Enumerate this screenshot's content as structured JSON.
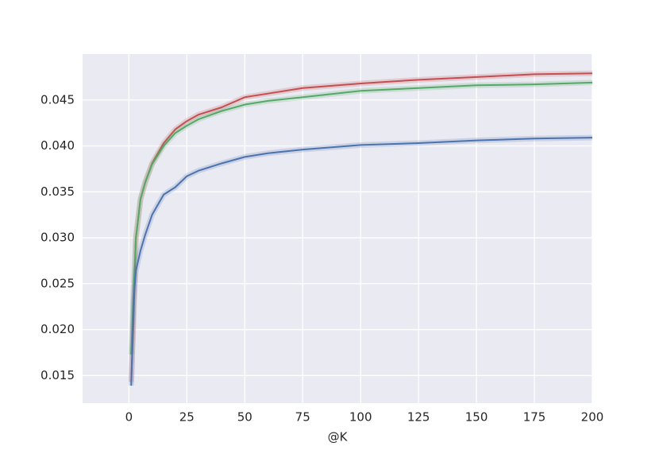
{
  "chart_data": {
    "type": "line",
    "x_label": "@K",
    "x": [
      1,
      2,
      3,
      5,
      7,
      10,
      15,
      20,
      25,
      30,
      40,
      50,
      60,
      75,
      100,
      125,
      150,
      175,
      200
    ],
    "series": [
      {
        "color": "#c44e52",
        "values": [
          0.0143,
          0.021,
          0.0299,
          0.0342,
          0.036,
          0.0381,
          0.0403,
          0.0418,
          0.0427,
          0.0434,
          0.0442,
          0.0453,
          0.0457,
          0.0463,
          0.0468,
          0.0472,
          0.0475,
          0.0478,
          0.0479
        ]
      },
      {
        "color": "#55a868",
        "values": [
          0.0173,
          0.024,
          0.03,
          0.0342,
          0.036,
          0.038,
          0.04,
          0.0414,
          0.0422,
          0.0429,
          0.0438,
          0.0445,
          0.0449,
          0.0453,
          0.046,
          0.0463,
          0.0466,
          0.0467,
          0.0469
        ]
      },
      {
        "color": "#4c72b0",
        "values": [
          0.0139,
          0.023,
          0.0264,
          0.0286,
          0.0303,
          0.0325,
          0.0347,
          0.0355,
          0.0367,
          0.0373,
          0.0381,
          0.0388,
          0.0392,
          0.0396,
          0.0401,
          0.0403,
          0.0406,
          0.0408,
          0.0409
        ]
      }
    ],
    "xlim": [
      -20,
      200
    ],
    "ylim": [
      0.012,
      0.05
    ],
    "xticks": [
      0,
      25,
      50,
      75,
      100,
      125,
      150,
      175,
      200
    ],
    "yticks": [
      0.015,
      {
        "value": 0.02,
        "label": "0.020"
      },
      0.025,
      {
        "value": 0.03,
        "label": "0.030"
      },
      0.035,
      {
        "value": 0.04,
        "label": "0.040"
      },
      0.045
    ],
    "grid": true
  }
}
